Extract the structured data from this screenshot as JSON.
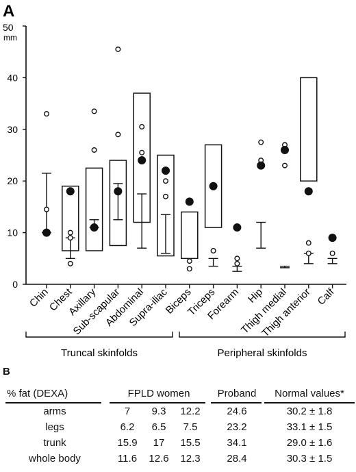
{
  "panel_a_label": "A",
  "panel_b_label": "B",
  "chart_data": {
    "type": "box-scatter",
    "ylabel_value": "50",
    "ylabel_unit": "mm",
    "ylim": [
      0,
      50
    ],
    "yticks": [
      "0",
      "10",
      "20",
      "30",
      "40",
      "50"
    ],
    "categories": [
      "Chin",
      "Chest",
      "Axillary",
      "Sub-scapular",
      "Abdominal",
      "Supra-iliac",
      "Biceps",
      "Triceps",
      "Forearm",
      "Hip",
      "Thigh medial",
      "Thigh anterior",
      "Calf"
    ],
    "normal_range_boxes": [
      {
        "category": "Chest",
        "low": 6.5,
        "high": 19
      },
      {
        "category": "Axillary",
        "low": 6.5,
        "high": 22.5
      },
      {
        "category": "Sub-scapular",
        "low": 7.5,
        "high": 24
      },
      {
        "category": "Abdominal",
        "low": 12,
        "high": 37
      },
      {
        "category": "Supra-iliac",
        "low": 5.5,
        "high": 25
      },
      {
        "category": "Biceps",
        "low": 5,
        "high": 14
      },
      {
        "category": "Triceps",
        "low": 11,
        "high": 27
      },
      {
        "category": "Thigh anterior",
        "low": 20,
        "high": 40
      }
    ],
    "error_bars": [
      {
        "category": "Chin",
        "mean": 14,
        "low": 10,
        "high": 21.5
      },
      {
        "category": "Chest",
        "mean": 9,
        "low": 5,
        "high": 9
      },
      {
        "category": "Axillary",
        "mean": 11,
        "low": 11,
        "high": 12.5
      },
      {
        "category": "Sub-scapular",
        "mean": 18,
        "low": 12.5,
        "high": 19.5
      },
      {
        "category": "Abdominal",
        "mean": 17.5,
        "low": 7,
        "high": 17.5
      },
      {
        "category": "Supra-iliac",
        "mean": 13,
        "low": 6,
        "high": 13.5
      },
      {
        "category": "Triceps",
        "mean": 5,
        "low": 3.5,
        "high": 5
      },
      {
        "category": "Forearm",
        "mean": 3.5,
        "low": 2.5,
        "high": 3.5
      },
      {
        "category": "Hip",
        "mean": 12,
        "low": 7,
        "high": 12
      },
      {
        "category": "Thigh medial",
        "mean": 3.5,
        "low": 3.2,
        "high": 3.5
      },
      {
        "category": "Thigh anterior",
        "mean": 6,
        "low": 4,
        "high": 6
      },
      {
        "category": "Calf",
        "mean": 5,
        "low": 4,
        "high": 5
      }
    ],
    "proband": [
      {
        "category": "Chin",
        "value": 10
      },
      {
        "category": "Chest",
        "value": 18
      },
      {
        "category": "Axillary",
        "value": 11
      },
      {
        "category": "Sub-scapular",
        "value": 18
      },
      {
        "category": "Abdominal",
        "value": 24
      },
      {
        "category": "Supra-iliac",
        "value": 22
      },
      {
        "category": "Biceps",
        "value": 16
      },
      {
        "category": "Triceps",
        "value": 19
      },
      {
        "category": "Forearm",
        "value": 11
      },
      {
        "category": "Hip",
        "value": 23
      },
      {
        "category": "Thigh medial",
        "value": 26
      },
      {
        "category": "Thigh anterior",
        "value": 18
      },
      {
        "category": "Calf",
        "value": 9
      }
    ],
    "fpld_women": [
      {
        "category": "Chin",
        "values": [
          33,
          14.5
        ]
      },
      {
        "category": "Chest",
        "values": [
          10,
          9,
          4
        ]
      },
      {
        "category": "Axillary",
        "values": [
          33.5,
          26
        ]
      },
      {
        "category": "Sub-scapular",
        "values": [
          45.5,
          29
        ]
      },
      {
        "category": "Abdominal",
        "values": [
          30.5,
          25.5
        ]
      },
      {
        "category": "Supra-iliac",
        "values": [
          20,
          17,
          22
        ]
      },
      {
        "category": "Biceps",
        "values": [
          4.5,
          3
        ]
      },
      {
        "category": "Triceps",
        "values": [
          6.5
        ]
      },
      {
        "category": "Forearm",
        "values": [
          5,
          4
        ]
      },
      {
        "category": "Hip",
        "values": [
          27.5,
          24
        ]
      },
      {
        "category": "Thigh medial",
        "values": [
          27,
          23
        ]
      },
      {
        "category": "Thigh anterior",
        "values": [
          8,
          6
        ]
      },
      {
        "category": "Calf",
        "values": [
          6
        ]
      }
    ],
    "groups": [
      {
        "label": "Truncal skinfolds",
        "categories": [
          "Chin",
          "Chest",
          "Axillary",
          "Sub-scapular",
          "Abdominal",
          "Supra-iliac"
        ]
      },
      {
        "label": "Peripheral skinfolds",
        "categories": [
          "Biceps",
          "Triceps",
          "Forearm",
          "Hip",
          "Thigh medial",
          "Thigh anterior",
          "Calf"
        ]
      }
    ]
  },
  "table": {
    "headers": {
      "measure": "% fat (DEXA)",
      "fpld": "FPLD women",
      "proband": "Proband",
      "normal": "Normal values*"
    },
    "rows": [
      {
        "label": "arms",
        "fpld": [
          "7",
          "9.3",
          "12.2"
        ],
        "proband": "24.6",
        "normal": "30.2 ± 1.8"
      },
      {
        "label": "legs",
        "fpld": [
          "6.2",
          "6.5",
          "7.5"
        ],
        "proband": "23.2",
        "normal": "33.1 ± 1.5"
      },
      {
        "label": "trunk",
        "fpld": [
          "15.9",
          "17",
          "15.5"
        ],
        "proband": "34.1",
        "normal": "29.0 ± 1.6"
      },
      {
        "label": "whole body",
        "fpld": [
          "11.6",
          "12.6",
          "12.3"
        ],
        "proband": "28.4",
        "normal": "30.3 ± 1.5"
      }
    ]
  }
}
